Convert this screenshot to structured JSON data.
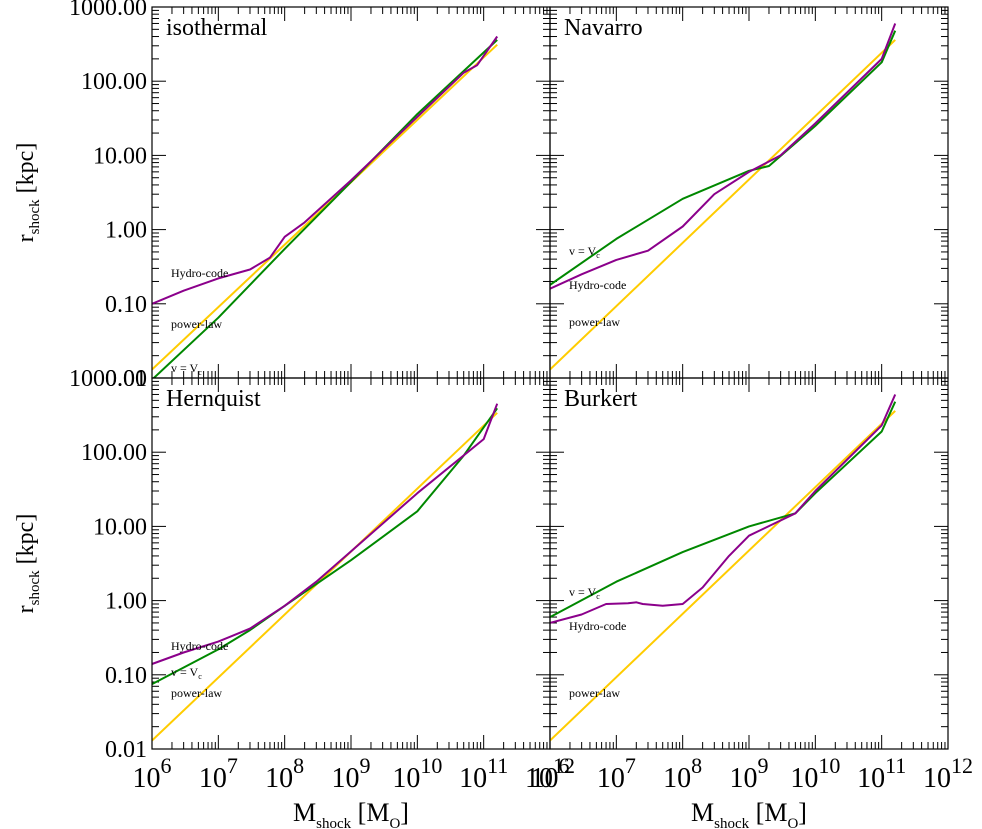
{
  "chart_data": {
    "type": "line",
    "x_scale": "log",
    "y_scale": "log",
    "xlim": [
      1000000,
      1000000000000
    ],
    "ylim": [
      0.01,
      1000
    ],
    "xlabel": {
      "main": "M",
      "sub": "shock",
      "bracket": "[M",
      "bracket_sub": "O",
      "bracket_end": "]"
    },
    "ylabel": {
      "main": "r",
      "sub": "shock",
      "unit": "[kpc]"
    },
    "x_tick_labels": [
      {
        "base": "10",
        "exp": "6"
      },
      {
        "base": "10",
        "exp": "7"
      },
      {
        "base": "10",
        "exp": "8"
      },
      {
        "base": "10",
        "exp": "9"
      },
      {
        "base": "10",
        "exp": "10"
      },
      {
        "base": "10",
        "exp": "11"
      },
      {
        "base": "10",
        "exp": "12"
      }
    ],
    "y_tick_labels": [
      "0.01",
      "0.10",
      "1.00",
      "10.00",
      "100.00",
      "1000.00"
    ],
    "series_colors": {
      "Hydro-code": "#8b008b",
      "power-law": "#ffcc00",
      "v = V_c": "#008800"
    },
    "series_label_text": {
      "hydro": "Hydro-code",
      "powerlaw": "power-law",
      "vvc": {
        "main": "v = V",
        "sub": "c"
      }
    },
    "panels": [
      {
        "title": "isothermal",
        "label_order": [
          "hydro",
          "powerlaw",
          "vvc"
        ],
        "series": [
          {
            "name": "power-law",
            "x": [
              1000000.0,
              160000000000.0
            ],
            "y": [
              0.013,
              310
            ]
          },
          {
            "name": "v = V_c",
            "x": [
              1000000.0,
              10000000.0,
              100000000.0,
              1000000000.0,
              10000000000.0,
              160000000000.0
            ],
            "y": [
              0.0095,
              0.065,
              0.55,
              4.4,
              36,
              360
            ]
          },
          {
            "name": "Hydro-code",
            "x": [
              1000000.0,
              3000000.0,
              10000000.0,
              30000000.0,
              60000000.0,
              100000000.0,
              200000000.0,
              1000000000.0,
              10000000000.0,
              50000000000.0,
              80000000000.0,
              160000000000.0
            ],
            "y": [
              0.1,
              0.15,
              0.22,
              0.29,
              0.42,
              0.8,
              1.25,
              4.6,
              33,
              130,
              165,
              400
            ]
          }
        ]
      },
      {
        "title": "Navarro",
        "label_order": [
          "vvc",
          "hydro",
          "powerlaw"
        ],
        "series": [
          {
            "name": "power-law",
            "x": [
              1000000.0,
              160000000000.0
            ],
            "y": [
              0.013,
              360
            ]
          },
          {
            "name": "v = V_c",
            "x": [
              1000000.0,
              10000000.0,
              100000000.0,
              1000000000.0,
              2000000000.0,
              10000000000.0,
              100000000000.0,
              160000000000.0
            ],
            "y": [
              0.18,
              0.75,
              2.6,
              6.2,
              7.2,
              25,
              180,
              480
            ]
          },
          {
            "name": "Hydro-code",
            "x": [
              1000000.0,
              3000000.0,
              10000000.0,
              30000000.0,
              100000000.0,
              300000000.0,
              1000000000.0,
              3000000000.0,
              10000000000.0,
              100000000000.0,
              160000000000.0
            ],
            "y": [
              0.16,
              0.25,
              0.39,
              0.52,
              1.1,
              3.0,
              6.0,
              10,
              27,
              200,
              600
            ]
          }
        ]
      },
      {
        "title": "Hernquist",
        "label_order": [
          "hydro",
          "vvc",
          "powerlaw"
        ],
        "series": [
          {
            "name": "power-law",
            "x": [
              1000000.0,
              160000000000.0
            ],
            "y": [
              0.013,
              340
            ]
          },
          {
            "name": "v = V_c",
            "x": [
              1000000.0,
              10000000.0,
              30000000.0,
              100000000.0,
              1000000000.0,
              10000000000.0,
              50000000000.0,
              160000000000.0
            ],
            "y": [
              0.075,
              0.22,
              0.4,
              0.85,
              3.5,
              16,
              90,
              390
            ]
          },
          {
            "name": "Hydro-code",
            "x": [
              1000000.0,
              3000000.0,
              10000000.0,
              30000000.0,
              100000000.0,
              300000000.0,
              1000000000.0,
              10000000000.0,
              100000000000.0,
              160000000000.0
            ],
            "y": [
              0.14,
              0.2,
              0.28,
              0.42,
              0.85,
              1.8,
              4.6,
              28,
              150,
              450
            ]
          }
        ]
      },
      {
        "title": "Burkert",
        "label_order": [
          "vvc",
          "hydro",
          "powerlaw"
        ],
        "series": [
          {
            "name": "power-law",
            "x": [
              1000000.0,
              160000000000.0
            ],
            "y": [
              0.013,
              360
            ]
          },
          {
            "name": "v = V_c",
            "x": [
              1000000.0,
              10000000.0,
              100000000.0,
              1000000000.0,
              5000000000.0,
              10000000000.0,
              100000000000.0,
              160000000000.0
            ],
            "y": [
              0.6,
              1.8,
              4.5,
              10,
              15,
              28,
              190,
              480
            ]
          },
          {
            "name": "Hydro-code",
            "x": [
              1000000.0,
              3000000.0,
              7000000.0,
              15000000.0,
              20000000.0,
              25000000.0,
              50000000.0,
              100000000.0,
              200000000.0,
              500000000.0,
              1000000000.0,
              5000000000.0,
              10000000000.0,
              100000000000.0,
              160000000000.0
            ],
            "y": [
              0.5,
              0.65,
              0.9,
              0.92,
              0.95,
              0.9,
              0.85,
              0.9,
              1.5,
              4,
              7.5,
              15,
              30,
              230,
              600
            ]
          }
        ]
      }
    ]
  }
}
